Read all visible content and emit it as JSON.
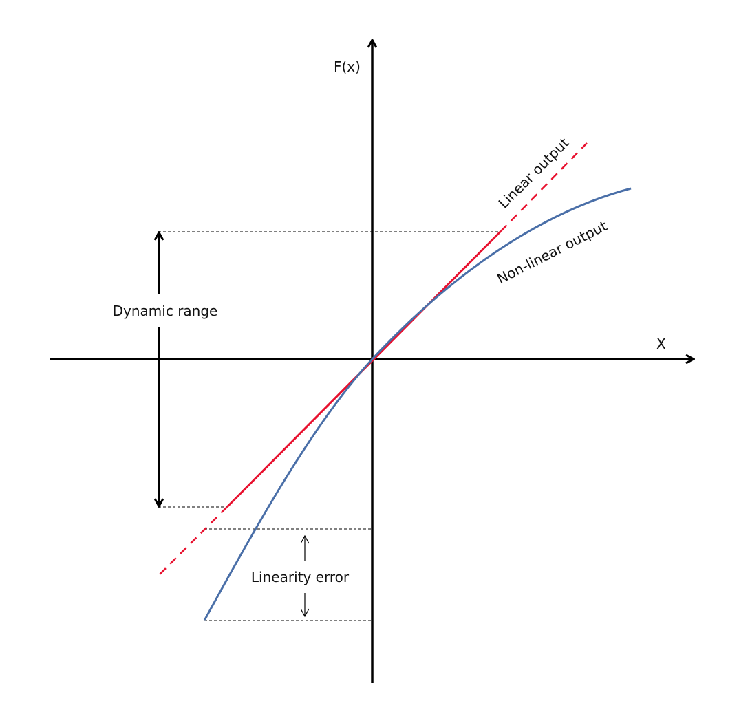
{
  "labels": {
    "y_axis": "F(x)",
    "x_axis": "X",
    "linear": "Linear output",
    "nonlinear": "Non-linear output",
    "dynamic_range": "Dynamic range",
    "linearity_error": "Linearity error"
  },
  "colors": {
    "axis": "#000000",
    "linear": "#e8102e",
    "nonlinear": "#4a6fa8"
  }
}
